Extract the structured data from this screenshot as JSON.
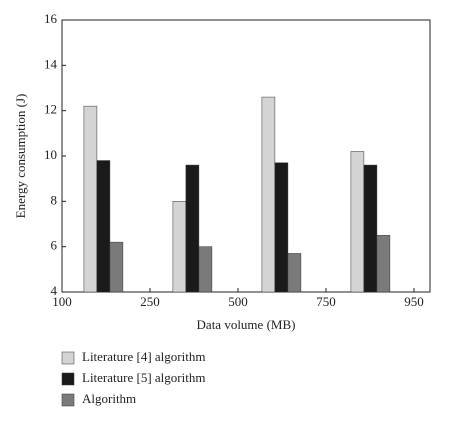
{
  "chart_data": {
    "type": "bar",
    "x_label": "Data volume (MB)",
    "y_label": "Energy consumption (J)",
    "categories": [
      null,
      null,
      null,
      null
    ],
    "x_tick_labels": [
      "100",
      "250",
      "500",
      "750",
      "950"
    ],
    "series": [
      {
        "name": "Literature [4] algorithm",
        "color": "#d4d4d4",
        "values": [
          12.2,
          8.0,
          12.6,
          10.2
        ]
      },
      {
        "name": "Literature [5] algorithm",
        "color": "#1a1a1a",
        "values": [
          9.8,
          9.6,
          9.7,
          9.6
        ]
      },
      {
        "name": "Algorithm",
        "color": "#7a7a7a",
        "values": [
          6.2,
          6.0,
          5.7,
          6.5
        ]
      }
    ],
    "ylim": [
      4,
      16
    ],
    "yticks": [
      4,
      6,
      8,
      10,
      12,
      14,
      16
    ]
  }
}
